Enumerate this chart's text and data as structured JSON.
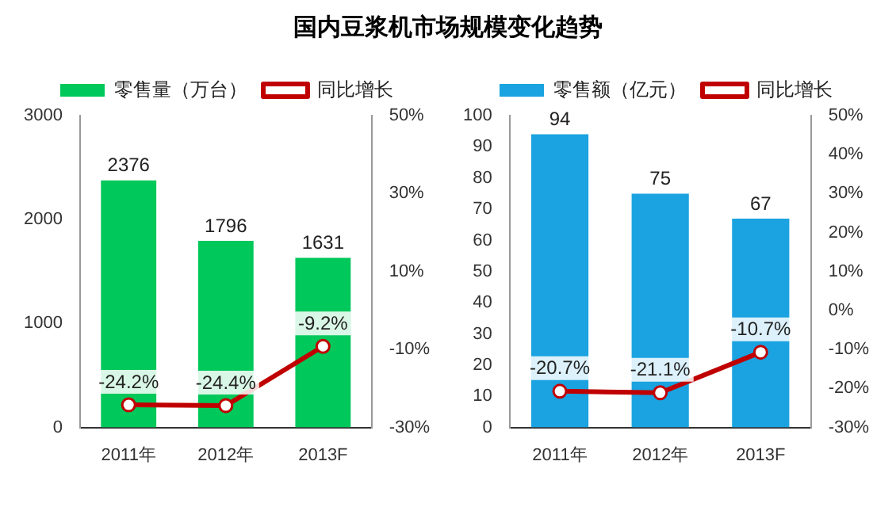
{
  "chart_data": [
    {
      "type": "bar",
      "title": "国内豆浆机市场规模变化趋势",
      "categories": [
        "2011年",
        "2012年",
        "2013F"
      ],
      "legend": "top",
      "marker": "circle",
      "series": [
        {
          "name": "零售量（万台）",
          "color": "#00c85a",
          "values": [
            2376,
            1796,
            1631
          ],
          "value_labels": [
            "2376",
            "1796",
            "1631"
          ]
        },
        {
          "name": "同比增长",
          "type": "line",
          "axis": "y2",
          "color": "#c00000",
          "values": [
            -24.2,
            -24.4,
            -9.2
          ],
          "value_labels": [
            "-24.2%",
            "-24.4%",
            "-9.2%"
          ]
        }
      ],
      "ylim": [
        0,
        3000
      ],
      "yticks": [
        0,
        1000,
        2000,
        3000
      ],
      "y2lim": [
        -30,
        50
      ],
      "y2ticks": [
        {
          "value": -30,
          "label": "-30%"
        },
        {
          "value": -10,
          "label": "-10%"
        },
        {
          "value": 10,
          "label": "10%"
        },
        {
          "value": 30,
          "label": "30%"
        },
        {
          "value": 50,
          "label": "50%"
        }
      ]
    },
    {
      "type": "bar",
      "categories": [
        "2011年",
        "2012年",
        "2013F"
      ],
      "legend": "top",
      "marker": "circle",
      "series": [
        {
          "name": "零售额（亿元）",
          "color": "#1aa3e0",
          "values": [
            94,
            75,
            67
          ],
          "value_labels": [
            "94",
            "75",
            "67"
          ]
        },
        {
          "name": "同比增长",
          "type": "line",
          "axis": "y2",
          "color": "#c00000",
          "values": [
            -20.7,
            -21.1,
            -10.7
          ],
          "value_labels": [
            "-20.7%",
            "-21.1%",
            "-10.7%"
          ]
        }
      ],
      "ylim": [
        0,
        100
      ],
      "yticks": [
        0,
        10,
        20,
        30,
        40,
        50,
        60,
        70,
        80,
        90,
        100
      ],
      "y2lim": [
        -30,
        50
      ],
      "y2ticks": [
        {
          "value": -30,
          "label": "-30%"
        },
        {
          "value": -20,
          "label": "-20%"
        },
        {
          "value": -10,
          "label": "-10%"
        },
        {
          "value": 0,
          "label": "0%"
        },
        {
          "value": 10,
          "label": "10%"
        },
        {
          "value": 20,
          "label": "20%"
        },
        {
          "value": 30,
          "label": "30%"
        },
        {
          "value": 40,
          "label": "40%"
        },
        {
          "value": 50,
          "label": "50%"
        }
      ]
    }
  ]
}
